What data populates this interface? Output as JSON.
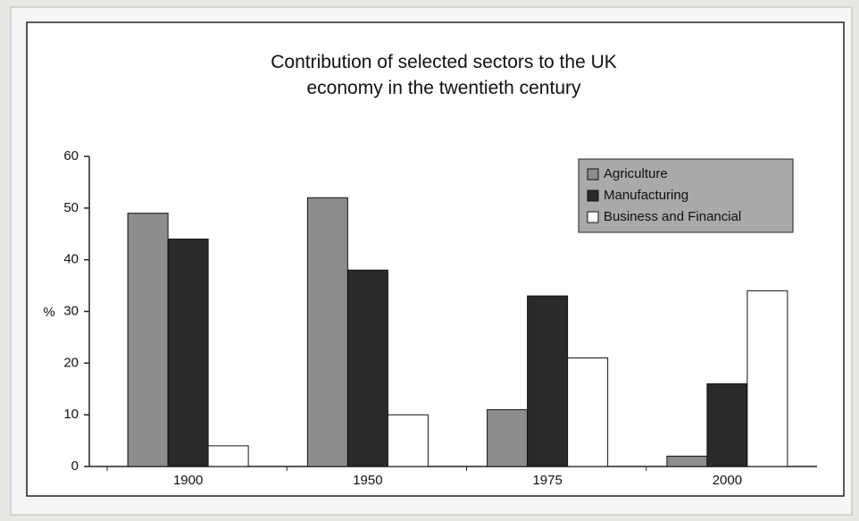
{
  "chart_data": {
    "type": "bar",
    "title": "Contribution of selected sectors to the UK economy in the twentieth century",
    "y_label": "%",
    "categories": [
      "1900",
      "1950",
      "1975",
      "2000"
    ],
    "series": [
      {
        "name": "Agriculture",
        "color": "#8c8c8c",
        "values": [
          49,
          52,
          11,
          2
        ]
      },
      {
        "name": "Manufacturing",
        "color": "#2a2a2a",
        "values": [
          44,
          38,
          33,
          16
        ]
      },
      {
        "name": "Business and Financial",
        "color": "#ffffff",
        "values": [
          4,
          10,
          21,
          34
        ]
      }
    ],
    "ylim": [
      0,
      60
    ],
    "yticks": [
      0,
      10,
      20,
      30,
      40,
      50,
      60
    ],
    "legend": "top-right"
  }
}
